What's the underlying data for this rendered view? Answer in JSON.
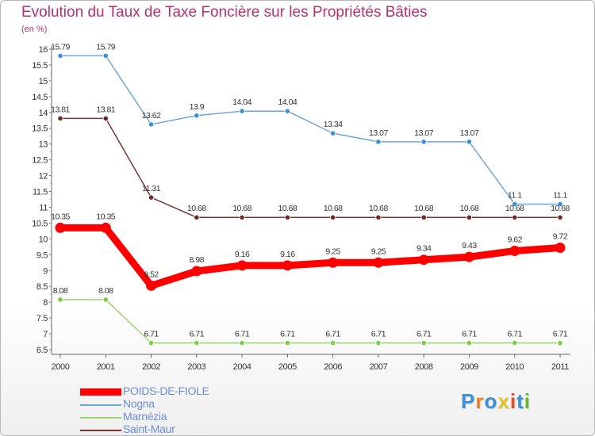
{
  "header": {
    "title": "Evolution du Taux de Taxe Foncière sur les Propriétés Bâties",
    "unit": "(en %)"
  },
  "logo": {
    "text": "Proxiti",
    "letters": [
      {
        "ch": "P",
        "color": "#3a8fd6"
      },
      {
        "ch": "r",
        "color": "#e8832a"
      },
      {
        "ch": "o",
        "color": "#3a8fd6"
      },
      {
        "ch": "x",
        "color": "#e8c12a"
      },
      {
        "ch": "i",
        "color": "#e84a2a"
      },
      {
        "ch": "t",
        "color": "#3a8fd6"
      },
      {
        "ch": "i",
        "color": "#6ab82e"
      }
    ]
  },
  "chart_data": {
    "type": "line",
    "title": "Evolution du Taux de Taxe Foncière sur les Propriétés Bâties",
    "ylabel": "(en %)",
    "xlabel": "",
    "ylim": [
      6.5,
      16
    ],
    "grid": false,
    "legend_position": "bottom-left",
    "x": [
      "2000",
      "2001",
      "2002",
      "2003",
      "2004",
      "2005",
      "2006",
      "2007",
      "2008",
      "2009",
      "2010",
      "2011"
    ],
    "y_ticks": [
      "6.5",
      "7",
      "7.5",
      "8",
      "8.5",
      "9",
      "9.5",
      "10",
      "10.5",
      "11",
      "11.5",
      "12",
      "12.5",
      "13",
      "13.5",
      "14",
      "14.5",
      "15",
      "15.5",
      "16"
    ],
    "series": [
      {
        "name": "Nogna",
        "color": "#6ea6d6",
        "marker": "#3d8fd6",
        "values": [
          15.79,
          15.79,
          13.62,
          13.9,
          14.04,
          14.04,
          13.34,
          13.07,
          13.07,
          13.07,
          11.1,
          11.1
        ],
        "labels": [
          "15.79",
          "15.79",
          "13.62",
          "13.9",
          "14.04",
          "14.04",
          "13.34",
          "13.07",
          "13.07",
          "13.07",
          "11.1",
          "11.1"
        ]
      },
      {
        "name": "Saint-Maur",
        "color": "#7a3434",
        "marker": "#6e2a2a",
        "values": [
          13.81,
          13.81,
          11.31,
          10.68,
          10.68,
          10.68,
          10.68,
          10.68,
          10.68,
          10.68,
          10.68,
          10.68
        ],
        "labels": [
          "13.81",
          "13.81",
          "11.31",
          "10.68",
          "10.68",
          "10.68",
          "10.68",
          "10.68",
          "10.68",
          "10.68",
          "10.68",
          "10.68"
        ]
      },
      {
        "name": "POIDS-DE-FIOLE",
        "color": "#ff0000",
        "marker": "#ff0000",
        "values": [
          10.35,
          10.35,
          8.52,
          8.98,
          9.16,
          9.16,
          9.25,
          9.25,
          9.34,
          9.43,
          9.62,
          9.72
        ],
        "labels": [
          "10.35",
          "10.35",
          "8.52",
          "8.98",
          "9.16",
          "9.16",
          "9.25",
          "9.25",
          "9.34",
          "9.43",
          "9.62",
          "9.72"
        ]
      },
      {
        "name": "Marnézia",
        "color": "#99d66e",
        "marker": "#7ccc44",
        "values": [
          8.08,
          8.08,
          6.71,
          6.71,
          6.71,
          6.71,
          6.71,
          6.71,
          6.71,
          6.71,
          6.71,
          6.71
        ],
        "labels": [
          "8.08",
          "8.08",
          "6.71",
          "6.71",
          "6.71",
          "6.71",
          "6.71",
          "6.71",
          "6.71",
          "6.71",
          "6.71",
          "6.71"
        ]
      }
    ]
  },
  "legend": {
    "items": [
      {
        "label": "POIDS-DE-FIOLE",
        "color": "#ff0000",
        "text_color": "#6a8fd8",
        "thick": true
      },
      {
        "label": "Nogna",
        "color": "#6ea6d6",
        "text_color": "#6a8fd8",
        "thick": false
      },
      {
        "label": "Marnézia",
        "color": "#99d66e",
        "text_color": "#6a8fd8",
        "thick": false
      },
      {
        "label": "Saint-Maur",
        "color": "#7a3434",
        "text_color": "#6a8fd8",
        "thick": false
      }
    ]
  }
}
